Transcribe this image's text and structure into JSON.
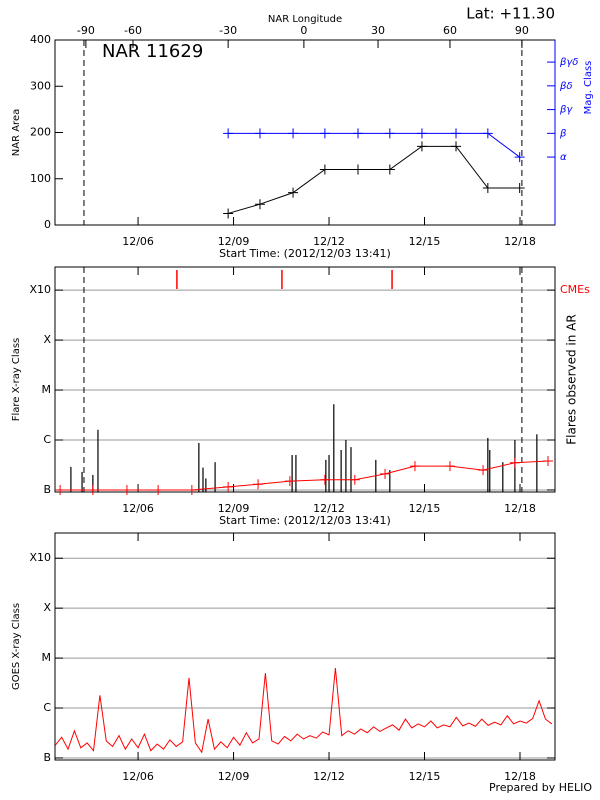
{
  "header": {
    "lat": "Lat: +11.30"
  },
  "footer": "Prepared by HELIO",
  "chart_data": [
    {
      "type": "line",
      "annotation": "NAR 11629",
      "x2label": "NAR Longitude",
      "xlabel": "Start Time: (2012/12/03 13:41)",
      "ylabel": "NAR Area",
      "y2label": "Mag. Class",
      "markers": true,
      "xlim": [
        3.39,
        19.1
      ],
      "xticks": [
        {
          "value": 6,
          "label": "12/06"
        },
        {
          "value": 9,
          "label": "12/09"
        },
        {
          "value": 12,
          "label": "12/12"
        },
        {
          "value": 15,
          "label": "12/15"
        },
        {
          "value": 18,
          "label": "12/18"
        }
      ],
      "x2ticks": [
        {
          "value": 4.36,
          "label": "-90"
        },
        {
          "value": 5.84,
          "label": "-60"
        },
        {
          "value": 8.83,
          "label": "-30"
        },
        {
          "value": 11.21,
          "label": "0"
        },
        {
          "value": 13.54,
          "label": "30"
        },
        {
          "value": 15.8,
          "label": "60"
        },
        {
          "value": 18.06,
          "label": "90"
        }
      ],
      "ylim": [
        0,
        400
      ],
      "yticks": [
        0,
        100,
        200,
        300,
        400
      ],
      "y2lim": [
        -1.86,
        5.93
      ],
      "y2ticks": [
        {
          "value": 1,
          "label": "α"
        },
        {
          "value": 2,
          "label": "β"
        },
        {
          "value": 3,
          "label": "βγ"
        },
        {
          "value": 4,
          "label": "βδ"
        },
        {
          "value": 5,
          "label": "βγδ"
        }
      ],
      "y2color": "#0000ff",
      "limb_lines": [
        4.3,
        18.06
      ],
      "series": [
        {
          "color": "#000000",
          "x": [
            8.83,
            9.83,
            10.87,
            11.87,
            12.91,
            13.91,
            14.92,
            15.99,
            16.99,
            17.99
          ],
          "values": [
            25,
            45,
            70,
            120,
            120,
            120,
            170,
            170,
            80,
            80
          ]
        },
        {
          "color": "#0000ff",
          "axis": "y2",
          "x": [
            8.83,
            9.83,
            10.87,
            11.87,
            12.91,
            13.91,
            14.92,
            15.99,
            16.99,
            17.99
          ],
          "values": [
            2,
            2,
            2,
            2,
            2,
            2,
            2,
            2,
            2,
            1
          ]
        }
      ]
    },
    {
      "type": "flare",
      "xlabel": "Start Time: (2012/12/03 13:41)",
      "ylabel": "Flare X-ray Class",
      "y2label": "Flares observed in AR",
      "log": true,
      "grid": true,
      "xlim": [
        3.39,
        19.1
      ],
      "xticks": [
        {
          "value": 6,
          "label": "12/06"
        },
        {
          "value": 9,
          "label": "12/09"
        },
        {
          "value": 12,
          "label": "12/12"
        },
        {
          "value": 15,
          "label": "12/15"
        },
        {
          "value": 18,
          "label": "12/18"
        }
      ],
      "ylim": [
        9.1e-08,
        0.0029
      ],
      "yticks": [
        {
          "value": 1e-07,
          "label": "B"
        },
        {
          "value": 1e-06,
          "label": "C"
        },
        {
          "value": 1e-05,
          "label": "M"
        },
        {
          "value": 0.0001,
          "label": "X"
        },
        {
          "value": 0.001,
          "label": "X10"
        }
      ],
      "limb_lines": [
        4.3,
        18.06
      ],
      "flares": {
        "color": "#000000",
        "x": [
          3.89,
          4.24,
          4.58,
          4.74,
          7.91,
          8.04,
          8.13,
          8.42,
          10.84,
          10.96,
          11.9,
          12.0,
          12.15,
          12.38,
          12.53,
          12.69,
          13.47,
          13.91,
          16.99,
          17.05,
          17.46,
          17.84,
          18.53
        ],
        "values": [
          2.9e-07,
          2.3e-07,
          2e-07,
          1.6e-06,
          8.7e-07,
          2.8e-07,
          1.7e-07,
          3.6e-07,
          5e-07,
          5e-07,
          4e-07,
          5e-07,
          5.2e-06,
          6.3e-07,
          1e-06,
          7.2e-07,
          4e-07,
          2.5e-07,
          1.1e-06,
          6.3e-07,
          3.6e-07,
          1e-06,
          1.3e-06
        ]
      },
      "background": {
        "color": "#ff0000",
        "x": [
          3.55,
          4.58,
          5.65,
          6.63,
          7.69,
          8.83,
          9.77,
          10.77,
          11.87,
          12.81,
          13.76,
          14.7,
          15.8,
          16.84,
          17.84,
          18.88
        ],
        "values": [
          1e-07,
          1e-07,
          1e-07,
          1e-07,
          1e-07,
          1.15e-07,
          1.3e-07,
          1.5e-07,
          1.6e-07,
          1.6e-07,
          2.1e-07,
          3e-07,
          3e-07,
          2.5e-07,
          3.5e-07,
          3.8e-07
        ]
      },
      "cmes": {
        "label": "CMEs",
        "color": "#ff0000",
        "x": [
          7.22,
          10.52,
          13.98
        ]
      }
    },
    {
      "type": "line",
      "ylabel": "GOES X-ray Class",
      "log": true,
      "grid": true,
      "xlim": [
        3.39,
        19.1
      ],
      "xticks": [
        {
          "value": 6,
          "label": "12/06"
        },
        {
          "value": 9,
          "label": "12/09"
        },
        {
          "value": 12,
          "label": "12/12"
        },
        {
          "value": 15,
          "label": "12/15"
        },
        {
          "value": 18,
          "label": "12/18"
        }
      ],
      "ylim": [
        9.1e-08,
        0.0032
      ],
      "yticks": [
        {
          "value": 1e-07,
          "label": "B"
        },
        {
          "value": 1e-06,
          "label": "C"
        },
        {
          "value": 1e-05,
          "label": "M"
        },
        {
          "value": 0.0001,
          "label": "X"
        },
        {
          "value": 0.001,
          "label": "X10"
        }
      ],
      "series": [
        {
          "color": "#ff0000",
          "x": [
            3.4,
            3.6,
            3.8,
            4.0,
            4.2,
            4.4,
            4.6,
            4.8,
            5.0,
            5.2,
            5.4,
            5.6,
            5.8,
            6.0,
            6.2,
            6.4,
            6.6,
            6.8,
            7.0,
            7.2,
            7.4,
            7.6,
            7.8,
            8.0,
            8.2,
            8.4,
            8.6,
            8.8,
            9.0,
            9.2,
            9.4,
            9.6,
            9.8,
            10.0,
            10.2,
            10.4,
            10.6,
            10.8,
            11.0,
            11.2,
            11.4,
            11.6,
            11.8,
            12.0,
            12.2,
            12.4,
            12.6,
            12.8,
            13.0,
            13.2,
            13.4,
            13.6,
            13.8,
            14.0,
            14.2,
            14.4,
            14.6,
            14.8,
            15.0,
            15.2,
            15.4,
            15.6,
            15.8,
            16.0,
            16.2,
            16.4,
            16.6,
            16.8,
            17.0,
            17.2,
            17.4,
            17.6,
            17.8,
            18.0,
            18.2,
            18.4,
            18.6,
            18.8,
            19.0
          ],
          "values": [
            1.8e-07,
            2.6e-07,
            1.5e-07,
            3.5e-07,
            1.6e-07,
            2e-07,
            1.4e-07,
            1.8e-06,
            2.2e-07,
            1.7e-07,
            2.8e-07,
            1.5e-07,
            2.4e-07,
            1.6e-07,
            3e-07,
            1.4e-07,
            1.9e-07,
            1.5e-07,
            2.3e-07,
            1.7e-07,
            2.1e-07,
            4e-06,
            2e-07,
            1.3e-07,
            6e-07,
            1.5e-07,
            2.1e-07,
            1.6e-07,
            2.6e-07,
            1.8e-07,
            3.2e-07,
            2e-07,
            2.4e-07,
            5e-06,
            2.2e-07,
            1.9e-07,
            2.7e-07,
            2.2e-07,
            3e-07,
            2.4e-07,
            2.8e-07,
            2.5e-07,
            3.3e-07,
            2.9e-07,
            6.3e-06,
            2.8e-07,
            3.5e-07,
            3e-07,
            3.8e-07,
            3.2e-07,
            4.2e-07,
            3.4e-07,
            4e-07,
            4.6e-07,
            3.6e-07,
            6e-07,
            4e-07,
            4.8e-07,
            4.2e-07,
            5.5e-07,
            4e-07,
            4.6e-07,
            4.2e-07,
            6.5e-07,
            4.4e-07,
            5e-07,
            4.3e-07,
            6e-07,
            4.5e-07,
            5.2e-07,
            4.6e-07,
            7e-07,
            4.8e-07,
            5.5e-07,
            5e-07,
            6.2e-07,
            1.4e-06,
            6e-07,
            4.8e-07
          ]
        }
      ]
    }
  ]
}
